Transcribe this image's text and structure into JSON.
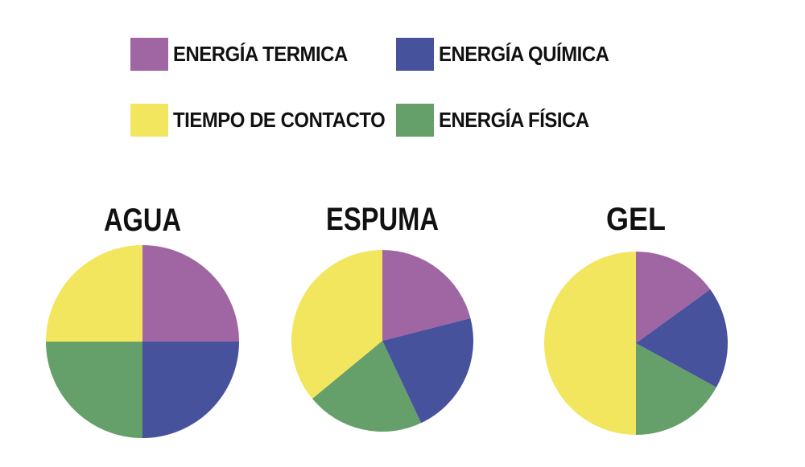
{
  "legend": {
    "items": [
      {
        "label": "ENERGÍA TERMICA",
        "color": "#a066a4"
      },
      {
        "label": "ENERGÍA QUÍMICA",
        "color": "#47529d"
      },
      {
        "label": "TIEMPO DE CONTACTO",
        "color": "#f2e65f"
      },
      {
        "label": "ENERGÍA FÍSICA",
        "color": "#659f69"
      }
    ]
  },
  "chart_data": [
    {
      "type": "pie",
      "title": "AGUA",
      "labels": [
        "ENERGÍA TERMICA",
        "ENERGÍA QUÍMICA",
        "ENERGÍA FÍSICA",
        "TIEMPO DE CONTACTO"
      ],
      "values": [
        25,
        25,
        25,
        25
      ],
      "colors": [
        "#a066a4",
        "#47529d",
        "#659f69",
        "#f2e65f"
      ]
    },
    {
      "type": "pie",
      "title": "ESPUMA",
      "labels": [
        "ENERGÍA TERMICA",
        "ENERGÍA QUÍMICA",
        "ENERGÍA FÍSICA",
        "TIEMPO DE CONTACTO"
      ],
      "values": [
        21,
        22,
        21,
        36
      ],
      "colors": [
        "#a066a4",
        "#47529d",
        "#659f69",
        "#f2e65f"
      ]
    },
    {
      "type": "pie",
      "title": "GEL",
      "labels": [
        "ENERGÍA TERMICA",
        "ENERGÍA QUÍMICA",
        "ENERGÍA FÍSICA",
        "TIEMPO DE CONTACTO"
      ],
      "values": [
        15,
        18,
        17,
        50
      ],
      "colors": [
        "#a066a4",
        "#47529d",
        "#659f69",
        "#f2e65f"
      ]
    }
  ]
}
